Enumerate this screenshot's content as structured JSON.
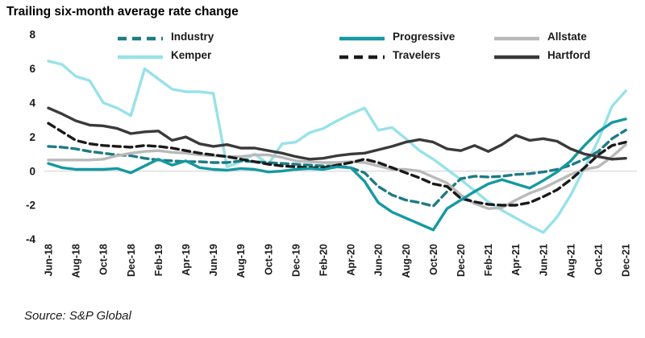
{
  "title": "Trailing six-month average rate change",
  "source": "Source: S&P Global",
  "chart_data": {
    "type": "line",
    "title": "Trailing six-month average rate change",
    "xlabel": "",
    "ylabel": "",
    "ylim": [
      -4,
      8
    ],
    "yticks": [
      8,
      6,
      4,
      2,
      0,
      -2,
      -4
    ],
    "gridline_at": 0,
    "grid": "zero-line-only",
    "legend_position": "top",
    "legend_order": [
      "Industry",
      "Progressive",
      "Allstate",
      "Kemper",
      "Travelers",
      "Hartford"
    ],
    "x_tick_labels_shown": [
      "Jun-18",
      "Aug-18",
      "Oct-18",
      "Dec-18",
      "Feb-19",
      "Apr-19",
      "Jun-19",
      "Aug-19",
      "Oct-19",
      "Dec-19",
      "Feb-20",
      "Apr-20",
      "Jun-20",
      "Aug-20",
      "Oct-20",
      "Dec-20",
      "Feb-21",
      "Apr-21",
      "Jun-21",
      "Aug-21",
      "Oct-21",
      "Dec-21"
    ],
    "x": [
      "Jun-18",
      "Jul-18",
      "Aug-18",
      "Sep-18",
      "Oct-18",
      "Nov-18",
      "Dec-18",
      "Jan-19",
      "Feb-19",
      "Mar-19",
      "Apr-19",
      "May-19",
      "Jun-19",
      "Jul-19",
      "Aug-19",
      "Sep-19",
      "Oct-19",
      "Nov-19",
      "Dec-19",
      "Jan-20",
      "Feb-20",
      "Mar-20",
      "Apr-20",
      "May-20",
      "Jun-20",
      "Jul-20",
      "Aug-20",
      "Sep-20",
      "Oct-20",
      "Nov-20",
      "Dec-20",
      "Jan-21",
      "Feb-21",
      "Mar-21",
      "Apr-21",
      "May-21",
      "Jun-21",
      "Jul-21",
      "Aug-21",
      "Sep-21",
      "Oct-21",
      "Nov-21",
      "Dec-21"
    ],
    "series": [
      {
        "name": "Kemper",
        "color": "#97e2e8",
        "dashed": false,
        "values": [
          6.45,
          6.25,
          5.55,
          5.3,
          4.0,
          3.7,
          3.25,
          6.0,
          5.4,
          4.8,
          4.65,
          4.65,
          4.55,
          0.25,
          0.55,
          1.0,
          0.4,
          1.6,
          1.7,
          2.25,
          2.5,
          2.95,
          3.35,
          3.7,
          2.4,
          2.55,
          1.9,
          1.2,
          0.7,
          0.1,
          -0.5,
          -1.15,
          -1.8,
          -2.3,
          -2.75,
          -3.2,
          -3.6,
          -2.7,
          -1.4,
          0.2,
          1.8,
          3.8,
          4.7
        ]
      },
      {
        "name": "Industry",
        "color": "#1f7b84",
        "dashed": true,
        "values": [
          1.45,
          1.4,
          1.3,
          1.15,
          1.05,
          0.95,
          0.9,
          0.75,
          0.65,
          0.6,
          0.55,
          0.55,
          0.5,
          0.5,
          0.6,
          0.55,
          0.5,
          0.45,
          0.4,
          0.35,
          0.3,
          0.3,
          0.2,
          -0.1,
          -0.9,
          -1.4,
          -1.7,
          -1.85,
          -2.05,
          -1.2,
          -0.45,
          -0.3,
          -0.35,
          -0.3,
          -0.2,
          -0.15,
          -0.05,
          0.1,
          0.35,
          0.7,
          1.15,
          1.9,
          2.4
        ]
      },
      {
        "name": "Allstate",
        "color": "#b9b9b9",
        "dashed": false,
        "values": [
          0.65,
          0.65,
          0.65,
          0.65,
          0.7,
          0.9,
          1.05,
          1.15,
          1.2,
          1.1,
          1.05,
          0.95,
          0.9,
          0.85,
          0.85,
          0.95,
          0.95,
          0.8,
          0.6,
          0.55,
          0.5,
          0.5,
          0.55,
          0.5,
          0.3,
          0.1,
          0.1,
          0.0,
          -0.35,
          -0.7,
          -1.4,
          -1.9,
          -2.2,
          -2.15,
          -1.7,
          -1.3,
          -1.0,
          -0.6,
          -0.2,
          0.1,
          0.25,
          0.85,
          1.55
        ]
      },
      {
        "name": "Travelers",
        "color": "#1a1a1a",
        "dashed": true,
        "values": [
          2.8,
          2.3,
          1.8,
          1.6,
          1.5,
          1.45,
          1.4,
          1.5,
          1.45,
          1.35,
          1.2,
          1.05,
          0.95,
          0.85,
          0.7,
          0.55,
          0.4,
          0.3,
          0.25,
          0.2,
          0.2,
          0.35,
          0.5,
          0.7,
          0.5,
          0.2,
          -0.1,
          -0.4,
          -0.75,
          -0.9,
          -1.6,
          -1.8,
          -1.95,
          -2.0,
          -2.0,
          -1.85,
          -1.5,
          -1.1,
          -0.5,
          0.2,
          0.95,
          1.5,
          1.7
        ]
      },
      {
        "name": "Progressive",
        "color": "#1599a1",
        "dashed": false,
        "values": [
          0.45,
          0.2,
          0.1,
          0.1,
          0.1,
          0.15,
          -0.1,
          0.3,
          0.7,
          0.35,
          0.6,
          0.2,
          0.1,
          0.05,
          0.15,
          0.1,
          -0.05,
          0.0,
          0.1,
          0.15,
          0.1,
          0.25,
          0.2,
          -0.6,
          -1.85,
          -2.4,
          -2.75,
          -3.1,
          -3.45,
          -2.2,
          -1.7,
          -1.2,
          -0.75,
          -0.5,
          -0.75,
          -1.0,
          -0.55,
          -0.05,
          0.6,
          1.5,
          2.3,
          2.85,
          3.05
        ]
      },
      {
        "name": "Hartford",
        "color": "#3a3a3a",
        "dashed": false,
        "values": [
          3.7,
          3.35,
          2.95,
          2.7,
          2.65,
          2.5,
          2.2,
          2.3,
          2.35,
          1.8,
          2.0,
          1.6,
          1.45,
          1.55,
          1.35,
          1.35,
          1.2,
          1.05,
          0.85,
          0.7,
          0.75,
          0.9,
          1.0,
          1.05,
          1.25,
          1.45,
          1.7,
          1.85,
          1.7,
          1.3,
          1.2,
          1.5,
          1.15,
          1.55,
          2.1,
          1.8,
          1.9,
          1.75,
          1.3,
          1.0,
          0.85,
          0.7,
          0.75
        ]
      }
    ],
    "colors": {
      "grid": "#d9d9d9",
      "text": "#1a1a1a",
      "title": "#000000"
    }
  }
}
